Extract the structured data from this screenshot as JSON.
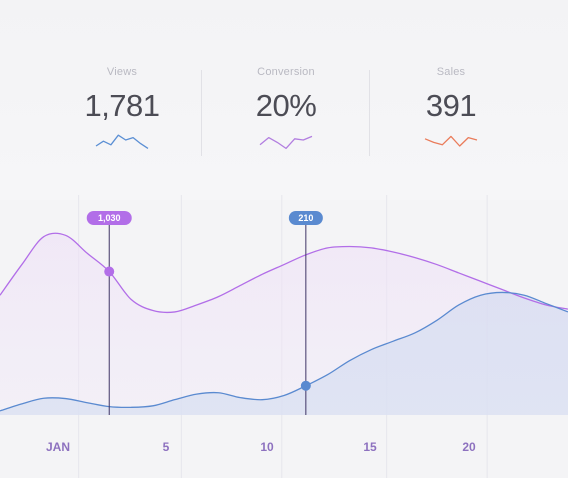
{
  "stats": [
    {
      "label": "Views",
      "value": "1,781",
      "color": "#5b8fd4",
      "spark": [
        5,
        9,
        6,
        14,
        10,
        12,
        7,
        3
      ]
    },
    {
      "label": "Conversion",
      "value": "20%",
      "color": "#b27ee0",
      "spark": [
        6,
        12,
        8,
        3,
        11,
        10,
        13
      ]
    },
    {
      "label": "Sales",
      "value": "391",
      "color": "#ea7c5b",
      "spark": [
        11,
        8,
        6,
        13,
        5,
        12,
        10
      ]
    }
  ],
  "chart_data": {
    "type": "line",
    "x_ticks": [
      "JAN",
      "5",
      "10",
      "15",
      "20"
    ],
    "series": [
      {
        "color": "#b26ee8",
        "x": [
          0,
          1,
          2,
          3,
          4,
          5,
          6,
          7,
          8,
          9,
          10,
          11,
          12,
          13,
          14,
          15,
          16,
          17,
          18,
          19,
          20,
          21,
          22,
          23,
          24,
          25,
          26
        ],
        "values": [
          860,
          1080,
          1280,
          1290,
          1160,
          1030,
          830,
          750,
          740,
          790,
          850,
          930,
          1010,
          1080,
          1150,
          1200,
          1210,
          1200,
          1170,
          1130,
          1080,
          1020,
          960,
          900,
          840,
          790,
          760
        ]
      },
      {
        "color": "#5a8ad0",
        "x": [
          0,
          1,
          2,
          3,
          4,
          5,
          6,
          7,
          8,
          9,
          10,
          11,
          12,
          13,
          14,
          15,
          16,
          17,
          18,
          19,
          20,
          21,
          22,
          23,
          24,
          25,
          26
        ],
        "values": [
          30,
          80,
          120,
          118,
          88,
          60,
          55,
          66,
          110,
          150,
          160,
          125,
          110,
          140,
          210,
          290,
          390,
          470,
          530,
          590,
          680,
          790,
          860,
          880,
          860,
          800,
          740
        ]
      }
    ],
    "markers": [
      {
        "series": 0,
        "x": 5,
        "label": "1,030"
      },
      {
        "series": 1,
        "x": 14,
        "label": "210"
      }
    ]
  }
}
